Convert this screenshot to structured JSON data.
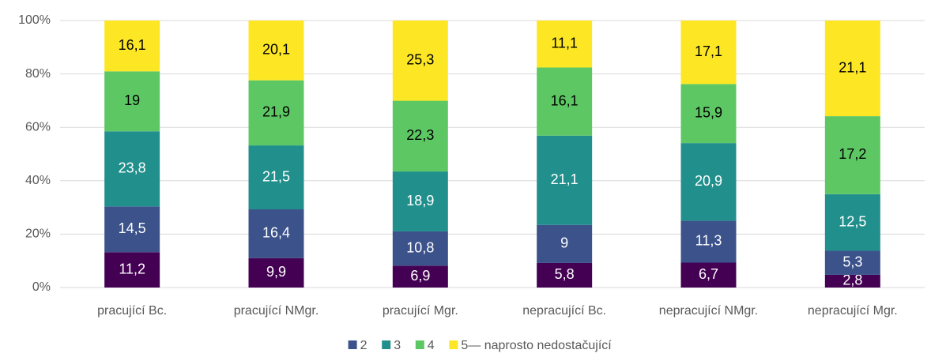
{
  "chart_data": {
    "type": "bar",
    "stacked": "percent",
    "categories": [
      "pracující Bc.",
      "pracující NMgr.",
      "pracující Mgr.",
      "nepracující Bc.",
      "nepracující NMgr.",
      "nepracující Mgr."
    ],
    "series": [
      {
        "color": "#440154",
        "values": [
          11.2,
          9.9,
          6.9,
          5.8,
          6.7,
          2.8
        ],
        "value_labels": [
          "11,2",
          "9,9",
          "6,9",
          "5,8",
          "6,7",
          "2,8"
        ]
      },
      {
        "name": "2",
        "color": "#3b528b",
        "values": [
          14.5,
          16.4,
          10.8,
          9,
          11.3,
          5.3
        ],
        "value_labels": [
          "14,5",
          "16,4",
          "10,8",
          "9",
          "11,3",
          "5,3"
        ]
      },
      {
        "name": "3",
        "color": "#21908d",
        "values": [
          23.8,
          21.5,
          18.9,
          21.1,
          20.9,
          12.5
        ],
        "value_labels": [
          "23,8",
          "21,5",
          "18,9",
          "21,1",
          "20,9",
          "12,5"
        ]
      },
      {
        "name": "4",
        "color": "#5dc863",
        "values": [
          19,
          21.9,
          22.3,
          16.1,
          15.9,
          17.2
        ],
        "value_labels": [
          "19",
          "21,9",
          "22,3",
          "16,1",
          "15,9",
          "17,2"
        ]
      },
      {
        "name": "5— naprosto nedostačující",
        "color": "#fde725",
        "values": [
          16.1,
          20.1,
          25.3,
          11.1,
          17.1,
          21.1
        ],
        "value_labels": [
          "16,1",
          "20,1",
          "25,3",
          "11,1",
          "17,1",
          "21,1"
        ]
      }
    ],
    "ylim": [
      0,
      100
    ],
    "yticks": [
      {
        "value": 0,
        "label": "0%"
      },
      {
        "value": 20,
        "label": "20%"
      },
      {
        "value": 40,
        "label": "40%"
      },
      {
        "value": 60,
        "label": "60%"
      },
      {
        "value": 80,
        "label": "80%"
      },
      {
        "value": 100,
        "label": "100%"
      }
    ],
    "grid": true,
    "legend": "bottom"
  }
}
